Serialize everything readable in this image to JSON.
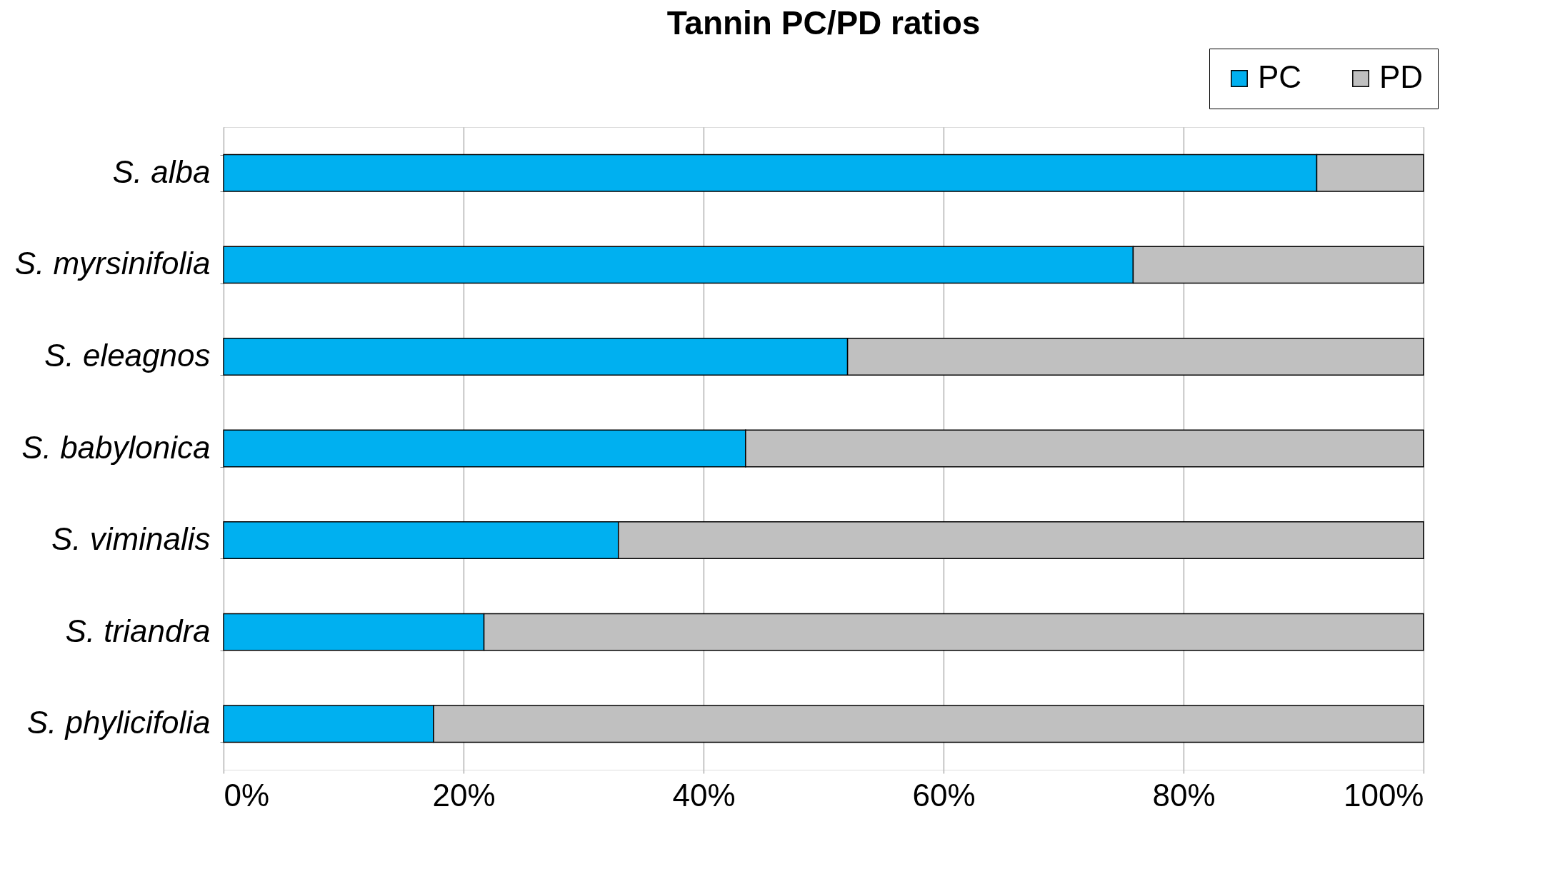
{
  "chart_data": {
    "type": "bar",
    "orientation": "horizontal",
    "stacked": true,
    "title": "Tannin PC/PD ratios",
    "categories": [
      "S. alba",
      "S. myrsinifolia",
      "S. eleagnos",
      "S. babylonica",
      "S. viminalis",
      "S. triandra",
      "S. phylicifolia"
    ],
    "series": [
      {
        "name": "PC",
        "color": "#00b0f0",
        "values": [
          91.1,
          75.8,
          52.0,
          43.5,
          32.9,
          21.7,
          17.5
        ]
      },
      {
        "name": "PD",
        "color": "#c0c0c0",
        "values": [
          8.9,
          24.2,
          48.0,
          56.5,
          67.1,
          78.3,
          82.5
        ]
      }
    ],
    "xlim": [
      0,
      100
    ],
    "xticks": [
      {
        "value": 0,
        "label": "0%"
      },
      {
        "value": 20,
        "label": "20%"
      },
      {
        "value": 40,
        "label": "40%"
      },
      {
        "value": 60,
        "label": "60%"
      },
      {
        "value": 80,
        "label": "80%"
      },
      {
        "value": 100,
        "label": "100%"
      }
    ],
    "grid": "x",
    "legend": "top right"
  }
}
